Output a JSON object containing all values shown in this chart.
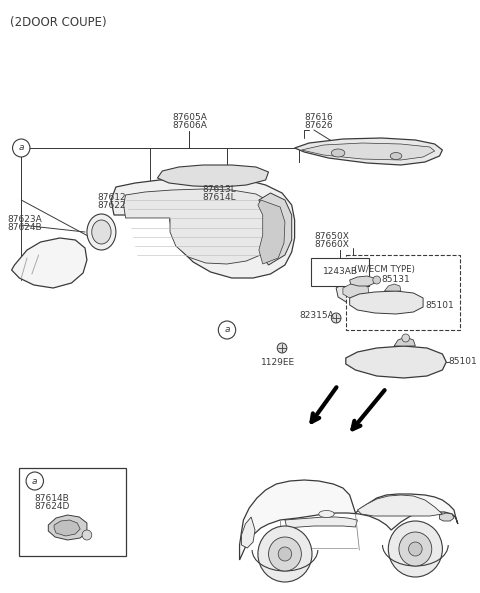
{
  "title": "(2DOOR COUPE)",
  "bg_color": "#ffffff",
  "lc": "#3a3a3a",
  "tc": "#3a3a3a",
  "fig_w": 4.8,
  "fig_h": 5.93,
  "dpi": 100,
  "xlim": [
    0,
    480
  ],
  "ylim": [
    0,
    593
  ]
}
